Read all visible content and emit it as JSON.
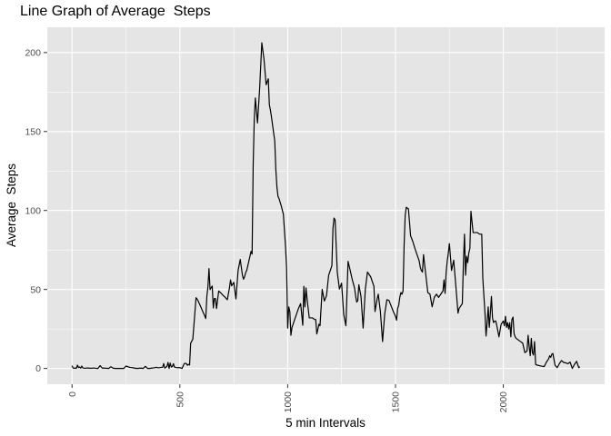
{
  "chart_data": {
    "type": "line",
    "title": "Line Graph of Average  Steps",
    "xlabel": "5 min Intervals",
    "ylabel": "Average  Steps",
    "xlim": [
      -115,
      2470
    ],
    "ylim": [
      -10,
      216
    ],
    "x_ticks": [
      0,
      500,
      1000,
      1500,
      2000
    ],
    "x_tick_labels": [
      "0",
      "500",
      "1000",
      "1500",
      "2000"
    ],
    "y_ticks": [
      0,
      50,
      100,
      150,
      200
    ],
    "y_tick_labels": [
      "0",
      "50",
      "100",
      "150",
      "200"
    ],
    "grid": true,
    "legend": "none",
    "colors": {
      "panel_background": "#e5e5e5",
      "grid_major": "#ffffff",
      "line": "#000000",
      "tick_label": "#4d4d4d"
    },
    "series": [
      {
        "x": [
          0,
          5,
          10,
          15,
          20,
          25,
          30,
          35,
          40,
          45,
          50,
          60,
          70,
          80,
          90,
          100,
          110,
          120,
          130,
          140,
          150,
          160,
          170,
          180,
          190,
          200,
          210,
          220,
          230,
          240,
          250,
          260,
          270,
          280,
          290,
          300,
          320,
          330,
          340,
          350,
          360,
          370,
          380,
          390,
          400,
          410,
          420,
          425,
          430,
          440,
          445,
          450,
          455,
          460,
          465,
          470,
          475,
          480,
          490,
          500,
          510,
          515,
          520,
          525,
          530,
          535,
          540,
          545,
          550,
          560,
          575,
          580,
          585,
          590,
          595,
          600,
          605,
          610,
          615,
          620,
          625,
          630,
          635,
          640,
          650,
          655,
          660,
          665,
          670,
          680,
          690,
          700,
          710,
          720,
          730,
          735,
          740,
          750,
          760,
          770,
          780,
          790,
          795,
          800,
          805,
          810,
          815,
          820,
          825,
          830,
          835,
          840,
          845,
          850,
          860,
          870,
          880,
          890,
          900,
          910,
          915,
          920,
          925,
          930,
          935,
          940,
          945,
          950,
          955,
          960,
          970,
          980,
          990,
          995,
          1000,
          1005,
          1010,
          1015,
          1020,
          1030,
          1040,
          1050,
          1060,
          1070,
          1075,
          1080,
          1085,
          1090,
          1100,
          1110,
          1115,
          1120,
          1125,
          1130,
          1135,
          1140,
          1145,
          1150,
          1160,
          1170,
          1180,
          1190,
          1195,
          1200,
          1205,
          1210,
          1215,
          1220,
          1230,
          1240,
          1250,
          1260,
          1270,
          1280,
          1290,
          1300,
          1310,
          1315,
          1320,
          1325,
          1330,
          1340,
          1350,
          1360,
          1370,
          1380,
          1385,
          1390,
          1395,
          1400,
          1405,
          1410,
          1415,
          1420,
          1430,
          1440,
          1450,
          1460,
          1470,
          1480,
          1490,
          1500,
          1505,
          1510,
          1515,
          1520,
          1525,
          1530,
          1535,
          1540,
          1545,
          1550,
          1560,
          1570,
          1580,
          1590,
          1600,
          1610,
          1615,
          1620,
          1625,
          1630,
          1640,
          1650,
          1660,
          1670,
          1680,
          1690,
          1700,
          1705,
          1710,
          1715,
          1720,
          1725,
          1730,
          1735,
          1740,
          1745,
          1750,
          1760,
          1770,
          1780,
          1790,
          1795,
          1800,
          1805,
          1810,
          1815,
          1820,
          1825,
          1830,
          1835,
          1840,
          1845,
          1850,
          1860,
          1870,
          1880,
          1890,
          1900,
          1905,
          1910,
          1915,
          1920,
          1925,
          1930,
          1935,
          1940,
          1945,
          1950,
          1955,
          1960,
          1965,
          1970,
          1980,
          1990,
          2000,
          2005,
          2010,
          2015,
          2020,
          2025,
          2030,
          2035,
          2040,
          2045,
          2050,
          2055,
          2060,
          2070,
          2080,
          2090,
          2100,
          2110,
          2115,
          2120,
          2125,
          2130,
          2135,
          2140,
          2145,
          2150,
          2160,
          2170,
          2180,
          2190,
          2200,
          2210,
          2215,
          2220,
          2225,
          2230,
          2240,
          2250,
          2260,
          2270,
          2280,
          2290,
          2300,
          2310,
          2320,
          2330,
          2340,
          2350,
          2355
        ],
        "y": [
          1.7,
          0.3,
          0.1,
          0.2,
          0.1,
          2.1,
          0.5,
          0.9,
          0.2,
          1.5,
          0.3,
          0.1,
          0.3,
          0.2,
          0.1,
          0.3,
          0.1,
          0.0,
          1.8,
          0.2,
          0.2,
          0.1,
          0.0,
          1.1,
          0.2,
          0.0,
          0.0,
          0.0,
          0.0,
          0.0,
          1.5,
          1.0,
          0.6,
          0.5,
          0.2,
          0.0,
          0.2,
          0.0,
          1.3,
          0.0,
          0.0,
          0.2,
          0.4,
          0.7,
          0.4,
          0.6,
          0.7,
          3.1,
          0.2,
          1.2,
          3.8,
          0.0,
          3.4,
          0.9,
          1.2,
          3.0,
          0.9,
          0.6,
          0.5,
          0.5,
          0.0,
          1.5,
          3.0,
          3.3,
          3.0,
          2.0,
          2.6,
          2.2,
          16.0,
          18.5,
          44.8,
          43.9,
          42.6,
          41.1,
          39.6,
          38.0,
          36.4,
          34.9,
          33.3,
          31.6,
          45.5,
          51.6,
          63.2,
          49.9,
          52.2,
          38.3,
          44.3,
          44.2,
          37.9,
          49.0,
          47.8,
          46.3,
          45.0,
          43.5,
          51.1,
          56.0,
          52.3,
          54.5,
          44.0,
          62.0,
          69.0,
          59.1,
          56.5,
          58.0,
          60.6,
          62.0,
          65.0,
          68.0,
          71.0,
          74.1,
          72.4,
          129.4,
          157.5,
          171.2,
          155.4,
          177.3,
          206.2,
          196.0,
          179.6,
          183.4,
          167.0,
          163.5,
          159.0,
          154.0,
          149.0,
          144.0,
          126.0,
          115.0,
          109.0,
          107.5,
          103.0,
          97.6,
          77.0,
          63.5,
          25.5,
          39.0,
          36.0,
          21.0,
          26.0,
          30.0,
          34.0,
          38.0,
          41.0,
          27.3,
          52.0,
          39.0,
          51.0,
          44.0,
          32.0,
          32.0,
          32.0,
          31.5,
          31.0,
          31.0,
          21.8,
          24.8,
          28.0,
          27.0,
          50.0,
          42.7,
          46.0,
          59.0,
          61.0,
          63.0,
          65.0,
          88.8,
          95.2,
          94.0,
          61.0,
          50.2,
          54.0,
          34.0,
          27.0,
          67.8,
          62.0,
          56.0,
          51.0,
          46.0,
          42.0,
          42.9,
          53.0,
          45.6,
          25.5,
          50.0,
          61.0,
          59.0,
          58.0,
          56.0,
          54.0,
          52.0,
          36.0,
          40.0,
          44.0,
          47.0,
          36.0,
          17.0,
          34.5,
          43.5,
          43.0,
          39.5,
          36.0,
          33.0,
          30.5,
          38.0,
          40.0,
          45.0,
          48.0,
          47.0,
          49.0,
          78.0,
          97.0,
          102.0,
          101.0,
          84.0,
          80.5,
          76.0,
          72.0,
          68.0,
          64.0,
          62.0,
          61.0,
          72.0,
          60.0,
          48.0,
          47.0,
          39.0,
          45.0,
          47.0,
          45.0,
          46.0,
          47.0,
          48.0,
          49.0,
          56.0,
          47.5,
          61.0,
          68.0,
          73.0,
          79.0,
          62.0,
          68.5,
          52.0,
          35.0,
          38.0,
          39.0,
          40.0,
          41.0,
          67.0,
          85.0,
          59.0,
          71.0,
          67.0,
          73.0,
          76.0,
          99.5,
          86.0,
          86.0,
          86.0,
          85.0,
          85.0,
          57.0,
          46.0,
          35.0,
          20.5,
          29.0,
          39.0,
          26.0,
          35.0,
          45.6,
          32.0,
          29.0,
          30.0,
          30.0,
          27.0,
          20.0,
          28.0,
          30.0,
          27.0,
          33.0,
          26.0,
          29.0,
          25.0,
          29.0,
          20.0,
          31.0,
          32.5,
          22.0,
          20.0,
          19.0,
          18.0,
          17.0,
          16.0,
          10.0,
          11.0,
          21.0,
          14.0,
          8.0,
          19.0,
          10.0,
          8.5,
          17.0,
          2.5,
          2.0,
          1.7,
          1.4,
          1.2,
          4.0,
          6.0,
          8.0,
          7.0,
          9.0,
          9.5,
          2.0,
          0.5,
          3.0,
          5.0,
          3.8,
          3.5,
          3.0,
          4.0,
          0.0,
          2.5,
          4.5,
          0.5,
          1.0
        ]
      }
    ]
  }
}
